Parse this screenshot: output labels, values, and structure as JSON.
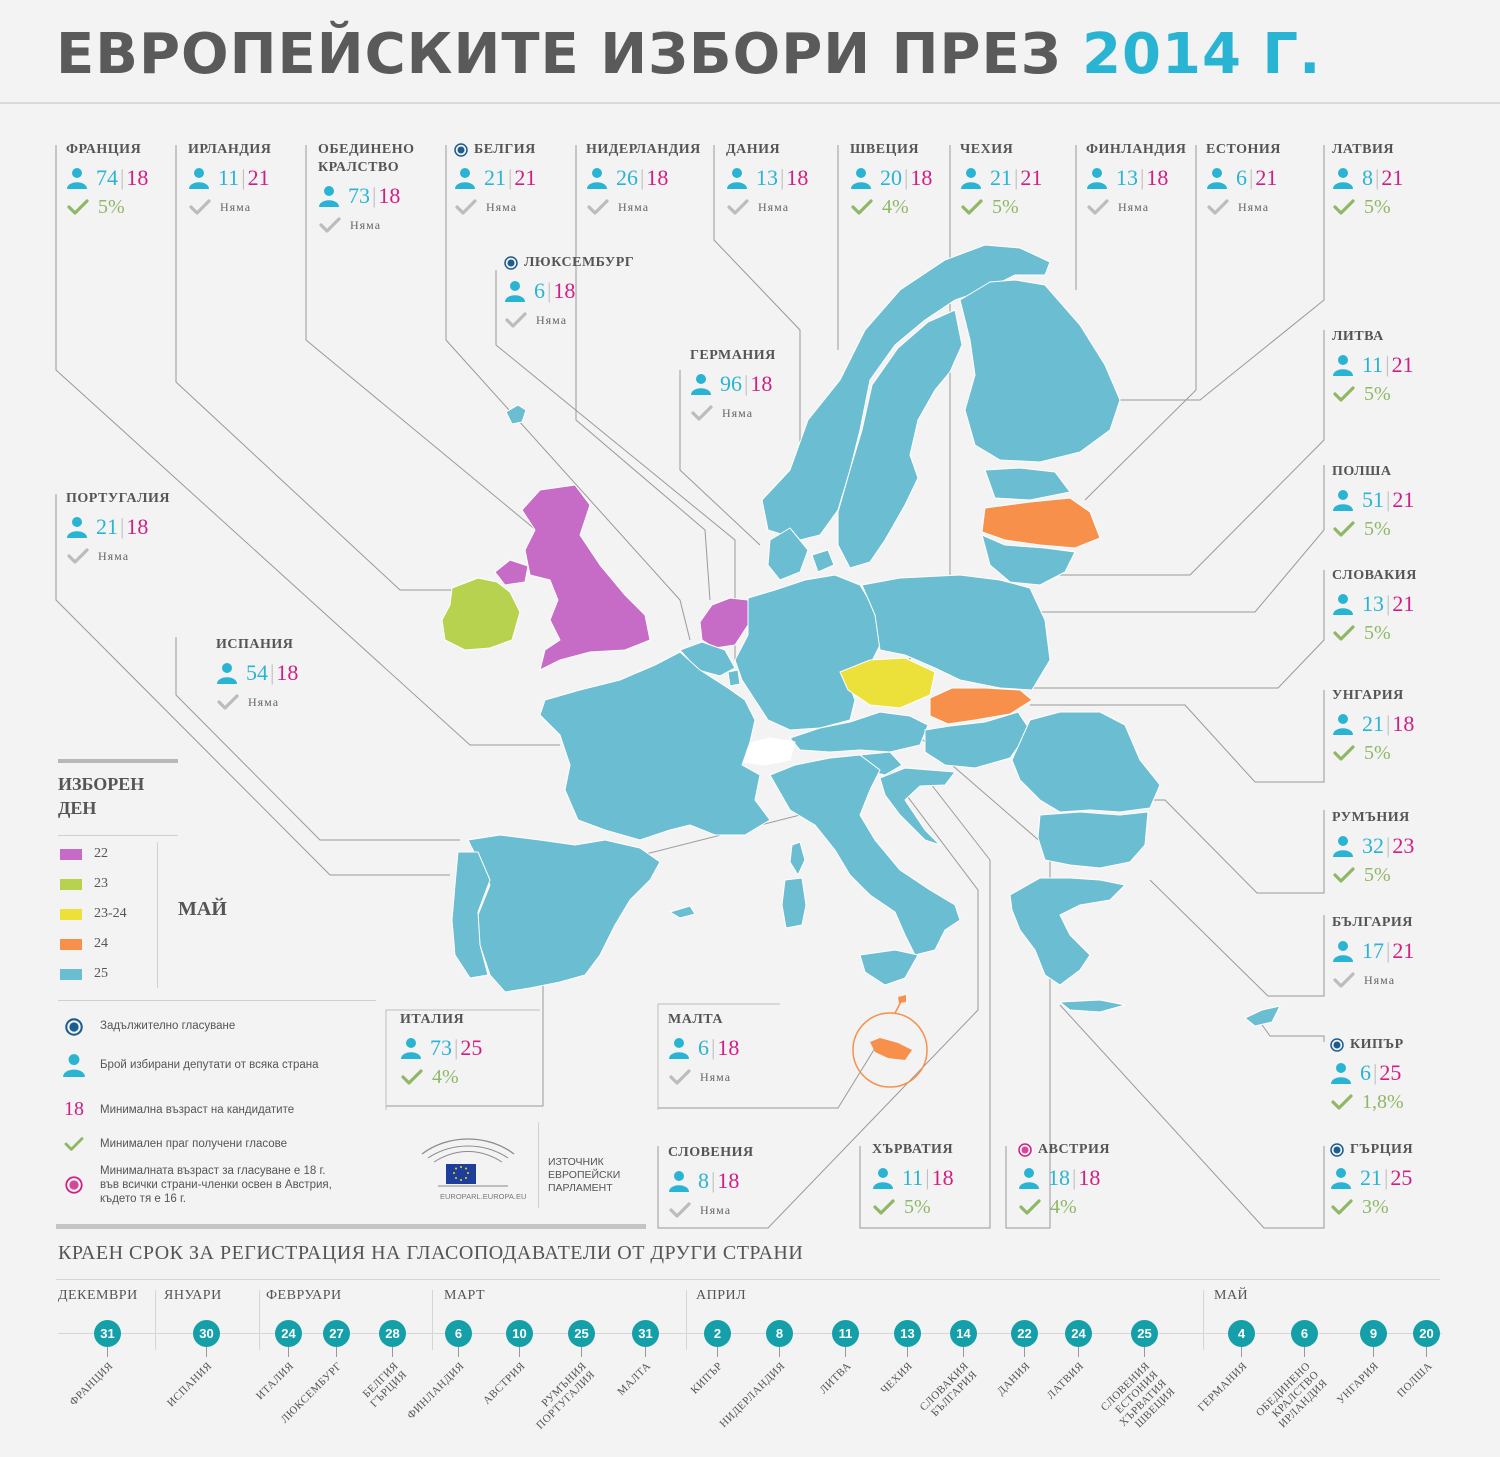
{
  "title": {
    "main": "ЕВРОПЕЙСКИТЕ ИЗБОРИ ПРЕЗ",
    "year": "2014 Г."
  },
  "colors": {
    "may22": "#c66bc6",
    "may23": "#b6d24e",
    "may23_24": "#ece03a",
    "may24": "#f7904a",
    "may25": "#6bbdd2",
    "seats": "#2ab4d3",
    "age": "#d11e83",
    "threshold": "#8fb864",
    "no_threshold": "#bcbcbc"
  },
  "countries": [
    {
      "name": "ФРАНЦИЯ",
      "seats": "74",
      "age": "18",
      "threshold": "5%",
      "has_threshold": true,
      "compulsory": false
    },
    {
      "name": "ИРЛАНДИЯ",
      "seats": "11",
      "age": "21",
      "threshold": "Няма",
      "has_threshold": false,
      "compulsory": false
    },
    {
      "name": "ОБЕДИНЕНО КРАЛСТВО",
      "seats": "73",
      "age": "18",
      "threshold": "Няма",
      "has_threshold": false,
      "compulsory": false
    },
    {
      "name": "БЕЛГИЯ",
      "seats": "21",
      "age": "21",
      "threshold": "Няма",
      "has_threshold": false,
      "compulsory": true
    },
    {
      "name": "НИДЕРЛАНДИЯ",
      "seats": "26",
      "age": "18",
      "threshold": "Няма",
      "has_threshold": false,
      "compulsory": false
    },
    {
      "name": "ДАНИЯ",
      "seats": "13",
      "age": "18",
      "threshold": "Няма",
      "has_threshold": false,
      "compulsory": false
    },
    {
      "name": "ШВЕЦИЯ",
      "seats": "20",
      "age": "18",
      "threshold": "4%",
      "has_threshold": true,
      "compulsory": false
    },
    {
      "name": "ЧЕХИЯ",
      "seats": "21",
      "age": "21",
      "threshold": "5%",
      "has_threshold": true,
      "compulsory": false
    },
    {
      "name": "ФИНЛАНДИЯ",
      "seats": "13",
      "age": "18",
      "threshold": "Няма",
      "has_threshold": false,
      "compulsory": false
    },
    {
      "name": "ЕСТОНИЯ",
      "seats": "6",
      "age": "21",
      "threshold": "Няма",
      "has_threshold": false,
      "compulsory": false
    },
    {
      "name": "ЛАТВИЯ",
      "seats": "8",
      "age": "21",
      "threshold": "5%",
      "has_threshold": true,
      "compulsory": false
    },
    {
      "name": "ЛЮКСЕМБУРГ",
      "seats": "6",
      "age": "18",
      "threshold": "Няма",
      "has_threshold": false,
      "compulsory": true
    },
    {
      "name": "ГЕРМАНИЯ",
      "seats": "96",
      "age": "18",
      "threshold": "Няма",
      "has_threshold": false,
      "compulsory": false
    },
    {
      "name": "ЛИТВА",
      "seats": "11",
      "age": "21",
      "threshold": "5%",
      "has_threshold": true,
      "compulsory": false
    },
    {
      "name": "ПОЛША",
      "seats": "51",
      "age": "21",
      "threshold": "5%",
      "has_threshold": true,
      "compulsory": false
    },
    {
      "name": "ПОРТУГАЛИЯ",
      "seats": "21",
      "age": "18",
      "threshold": "Няма",
      "has_threshold": false,
      "compulsory": false
    },
    {
      "name": "СЛОВАКИЯ",
      "seats": "13",
      "age": "21",
      "threshold": "5%",
      "has_threshold": true,
      "compulsory": false
    },
    {
      "name": "ИСПАНИЯ",
      "seats": "54",
      "age": "18",
      "threshold": "Няма",
      "has_threshold": false,
      "compulsory": false
    },
    {
      "name": "УНГАРИЯ",
      "seats": "21",
      "age": "18",
      "threshold": "5%",
      "has_threshold": true,
      "compulsory": false
    },
    {
      "name": "РУМЪНИЯ",
      "seats": "32",
      "age": "23",
      "threshold": "5%",
      "has_threshold": true,
      "compulsory": false
    },
    {
      "name": "БЪЛГАРИЯ",
      "seats": "17",
      "age": "21",
      "threshold": "Няма",
      "has_threshold": false,
      "compulsory": false
    },
    {
      "name": "ИТАЛИЯ",
      "seats": "73",
      "age": "25",
      "threshold": "4%",
      "has_threshold": true,
      "compulsory": false
    },
    {
      "name": "МАЛТА",
      "seats": "6",
      "age": "18",
      "threshold": "Няма",
      "has_threshold": false,
      "compulsory": false
    },
    {
      "name": "КИПЪР",
      "seats": "6",
      "age": "25",
      "threshold": "1,8%",
      "has_threshold": true,
      "compulsory": true
    },
    {
      "name": "СЛОВЕНИЯ",
      "seats": "8",
      "age": "18",
      "threshold": "Няма",
      "has_threshold": false,
      "compulsory": false
    },
    {
      "name": "ХЪРВАТИЯ",
      "seats": "11",
      "age": "18",
      "threshold": "5%",
      "has_threshold": true,
      "compulsory": false
    },
    {
      "name": "АВСТРИЯ",
      "seats": "18",
      "age": "18",
      "threshold": "4%",
      "has_threshold": true,
      "compulsory": false,
      "vote_age_16": true
    },
    {
      "name": "ГЪРЦИЯ",
      "seats": "21",
      "age": "25",
      "threshold": "3%",
      "has_threshold": true,
      "compulsory": true
    }
  ],
  "legend": {
    "title": "ИЗБОРЕН ДЕН",
    "month": "МАЙ",
    "items": [
      {
        "label": "22",
        "color": "#c66bc6"
      },
      {
        "label": "23",
        "color": "#b6d24e"
      },
      {
        "label": "23-24",
        "color": "#ece03a"
      },
      {
        "label": "24",
        "color": "#f7904a"
      },
      {
        "label": "25",
        "color": "#6bbdd2"
      }
    ]
  },
  "key": {
    "compulsory": "Задължително гласуване",
    "seats": "Брой избирани депутати от всяка страна",
    "age_sample": "18",
    "age": "Минимална възраст на кандидатите",
    "threshold": "Минимален праг получени гласове",
    "vote_age": "Минималната възраст за гласуване е 18 г. във всички страни-членки освен в Австрия, където тя е 16 г."
  },
  "source": {
    "label": "ИЗТОЧНИК ЕВРОПЕЙСКИ ПАРЛАМЕНТ",
    "logo_caption": "EUROPARL.EUROPA.EU"
  },
  "timeline": {
    "title": "КРАЕН СРОК ЗА РЕГИСТРАЦИЯ НА ГЛАСОПОДАВАТЕЛИ ОТ ДРУГИ СТРАНИ",
    "months": [
      "ДЕКЕМВРИ",
      "ЯНУАРИ",
      "ФЕВРУАРИ",
      "МАРТ",
      "АПРИЛ",
      "МАЙ"
    ],
    "entries": [
      {
        "day": "31",
        "label": "ФРАНЦИЯ"
      },
      {
        "day": "30",
        "label": "ИСПАНИЯ"
      },
      {
        "day": "24",
        "label": "ИТАЛИЯ"
      },
      {
        "day": "27",
        "label": "ЛЮКСЕМБУРГ"
      },
      {
        "day": "28",
        "label": "БЕЛГИЯ\nГЪРЦИЯ"
      },
      {
        "day": "6",
        "label": "ФИНЛАНДИЯ"
      },
      {
        "day": "10",
        "label": "АВСТРИЯ"
      },
      {
        "day": "25",
        "label": "РУМЪНИЯ\nПОРТУГАЛИЯ"
      },
      {
        "day": "31",
        "label": "МАЛТА"
      },
      {
        "day": "2",
        "label": "КИПЪР"
      },
      {
        "day": "8",
        "label": "НИДЕРЛАНДИЯ"
      },
      {
        "day": "11",
        "label": "ЛИТВА"
      },
      {
        "day": "13",
        "label": "ЧЕХИЯ"
      },
      {
        "day": "14",
        "label": "СЛОВАКИЯ\nБЪЛГАРИЯ"
      },
      {
        "day": "22",
        "label": "ДАНИЯ"
      },
      {
        "day": "24",
        "label": "ЛАТВИЯ"
      },
      {
        "day": "25",
        "label": "СЛОВЕНИЯ\nЕСТОНИЯ\nХЪРВАТИЯ\nШВЕЦИЯ"
      },
      {
        "day": "4",
        "label": "ГЕРМАНИЯ"
      },
      {
        "day": "6",
        "label": "ОБЕДИНЕНО\nКРАЛСТВО\nИРЛАНДИЯ"
      },
      {
        "day": "9",
        "label": "УНГАРИЯ"
      },
      {
        "day": "20",
        "label": "ПОЛША"
      }
    ]
  }
}
